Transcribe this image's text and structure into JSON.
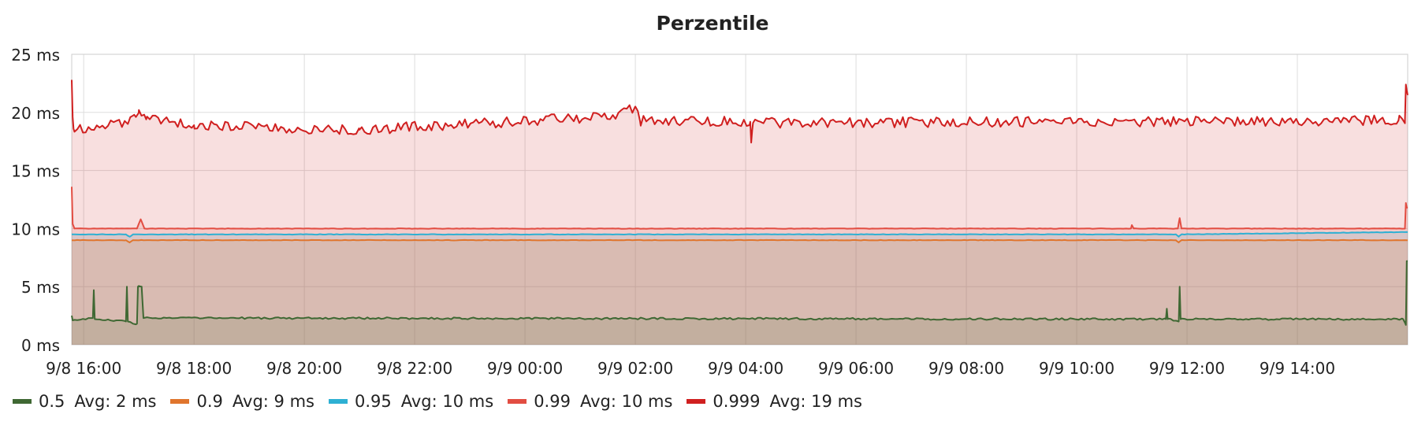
{
  "chart_data": {
    "type": "area",
    "title": "Perzentile",
    "y_unit": "ms",
    "ylim": [
      0,
      25
    ],
    "y_ticks": [
      "0 ms",
      "5 ms",
      "10 ms",
      "15 ms",
      "20 ms",
      "25 ms"
    ],
    "x_range": [
      "2023-09-08T15:47",
      "2023-09-09T16:00"
    ],
    "x_ticks": [
      "9/8 16:00",
      "9/8 18:00",
      "9/8 20:00",
      "9/8 22:00",
      "9/9 00:00",
      "9/9 02:00",
      "9/9 04:00",
      "9/9 06:00",
      "9/9 08:00",
      "9/9 10:00",
      "9/9 12:00",
      "9/9 14:00"
    ],
    "grid": true,
    "legend_position": "bottom",
    "series": [
      {
        "name": "0.5",
        "color": "#3f6833",
        "avg_label": "Avg: 2 ms",
        "base": 2.2,
        "noise": 0.08,
        "points": [
          {
            "t": "9/8 15:47",
            "v": 2.5
          },
          {
            "t": "9/8 15:48",
            "v": 2.1
          },
          {
            "t": "9/8 16:10",
            "v": 2.3
          },
          {
            "t": "9/8 16:11",
            "v": 4.7
          },
          {
            "t": "9/8 16:12",
            "v": 2.2
          },
          {
            "t": "9/8 16:46",
            "v": 2.0
          },
          {
            "t": "9/8 16:47",
            "v": 5.0
          },
          {
            "t": "9/8 16:48",
            "v": 2.0
          },
          {
            "t": "9/8 16:58",
            "v": 1.8
          },
          {
            "t": "9/8 16:59",
            "v": 5.0
          },
          {
            "t": "9/8 17:03",
            "v": 5.0
          },
          {
            "t": "9/8 17:05",
            "v": 2.3
          },
          {
            "t": "9/9 11:37",
            "v": 2.2
          },
          {
            "t": "9/9 11:38",
            "v": 3.1
          },
          {
            "t": "9/9 11:39",
            "v": 2.2
          },
          {
            "t": "9/9 11:51",
            "v": 2.0
          },
          {
            "t": "9/9 11:52",
            "v": 5.0
          },
          {
            "t": "9/9 11:53",
            "v": 2.2
          },
          {
            "t": "9/9 15:55",
            "v": 2.2
          },
          {
            "t": "9/9 15:58",
            "v": 1.7
          },
          {
            "t": "9/9 15:59",
            "v": 7.2
          }
        ]
      },
      {
        "name": "0.9",
        "color": "#e0752d",
        "avg_label": "Avg: 9 ms",
        "base": 9.0,
        "noise": 0.02,
        "points": [
          {
            "t": "9/8 15:47",
            "v": 9.0
          },
          {
            "t": "9/8 16:46",
            "v": 9.0
          },
          {
            "t": "9/8 16:50",
            "v": 8.8
          },
          {
            "t": "9/8 16:54",
            "v": 9.0
          },
          {
            "t": "9/8 17:05",
            "v": 9.0
          },
          {
            "t": "9/9 11:48",
            "v": 9.0
          },
          {
            "t": "9/9 11:51",
            "v": 8.8
          },
          {
            "t": "9/9 11:54",
            "v": 9.0
          },
          {
            "t": "9/9 15:59",
            "v": 9.0
          }
        ]
      },
      {
        "name": "0.95",
        "color": "#2eb0d3",
        "avg_label": "Avg: 10 ms",
        "base": 9.5,
        "noise": 0.02,
        "points": [
          {
            "t": "9/8 15:47",
            "v": 9.5
          },
          {
            "t": "9/8 16:46",
            "v": 9.5
          },
          {
            "t": "9/8 16:50",
            "v": 9.3
          },
          {
            "t": "9/8 16:54",
            "v": 9.5
          },
          {
            "t": "9/9 11:48",
            "v": 9.5
          },
          {
            "t": "9/9 11:51",
            "v": 9.3
          },
          {
            "t": "9/9 11:54",
            "v": 9.5
          },
          {
            "t": "9/9 15:59",
            "v": 9.7
          }
        ]
      },
      {
        "name": "0.99",
        "color": "#e24d42",
        "avg_label": "Avg: 10 ms",
        "base": 10.0,
        "noise": 0.02,
        "points": [
          {
            "t": "9/8 15:47",
            "v": 13.6
          },
          {
            "t": "9/8 15:48",
            "v": 10.4
          },
          {
            "t": "9/8 15:50",
            "v": 10.0
          },
          {
            "t": "9/8 16:58",
            "v": 10.0
          },
          {
            "t": "9/8 17:02",
            "v": 10.8
          },
          {
            "t": "9/8 17:06",
            "v": 10.0
          },
          {
            "t": "9/9 02:00",
            "v": 10.0
          },
          {
            "t": "9/9 10:59",
            "v": 10.0
          },
          {
            "t": "9/9 11:00",
            "v": 10.3
          },
          {
            "t": "9/9 11:02",
            "v": 10.0
          },
          {
            "t": "9/9 11:50",
            "v": 10.0
          },
          {
            "t": "9/9 11:52",
            "v": 10.9
          },
          {
            "t": "9/9 11:54",
            "v": 10.0
          },
          {
            "t": "9/9 15:57",
            "v": 10.0
          },
          {
            "t": "9/9 15:58",
            "v": 12.2
          },
          {
            "t": "9/9 15:59",
            "v": 11.8
          }
        ]
      },
      {
        "name": "0.999",
        "color": "#d01f1f",
        "avg_label": "Avg: 19 ms",
        "base": 19.2,
        "noise": 0.45,
        "points": [
          {
            "t": "9/8 15:47",
            "v": 22.8
          },
          {
            "t": "9/8 15:48",
            "v": 19.6
          },
          {
            "t": "9/8 15:49",
            "v": 18.6
          },
          {
            "t": "9/8 16:48",
            "v": 19.0
          },
          {
            "t": "9/8 16:55",
            "v": 19.8
          },
          {
            "t": "9/8 17:00",
            "v": 20.2
          },
          {
            "t": "9/8 17:08",
            "v": 19.4
          },
          {
            "t": "9/8 18:00",
            "v": 18.9
          },
          {
            "t": "9/8 21:00",
            "v": 18.5
          },
          {
            "t": "9/9 01:40",
            "v": 19.7
          },
          {
            "t": "9/9 02:00",
            "v": 20.5
          },
          {
            "t": "9/9 02:05",
            "v": 19.3
          },
          {
            "t": "9/9 04:05",
            "v": 19.2
          },
          {
            "t": "9/9 04:06",
            "v": 17.4
          },
          {
            "t": "9/9 04:08",
            "v": 19.1
          },
          {
            "t": "9/9 15:50",
            "v": 19.3
          },
          {
            "t": "9/9 15:57",
            "v": 19.3
          },
          {
            "t": "9/9 15:58",
            "v": 22.4
          },
          {
            "t": "9/9 15:59",
            "v": 21.9
          }
        ]
      }
    ]
  }
}
